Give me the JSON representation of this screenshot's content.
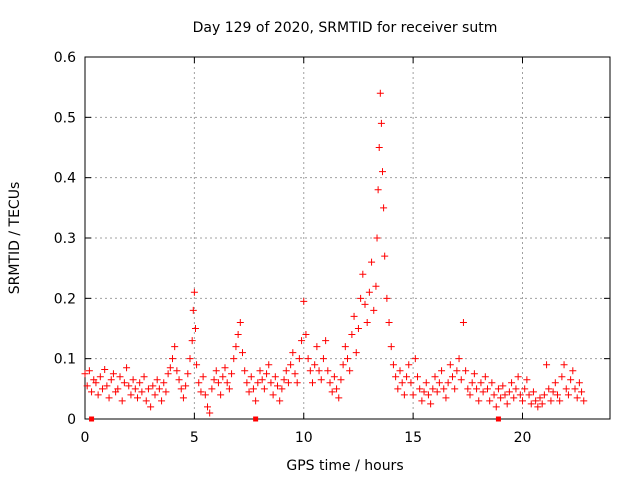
{
  "chart_data": {
    "type": "scatter",
    "title": "Day 129 of 2020, SRMTID for receiver sutm",
    "xlabel": "GPS time / hours",
    "ylabel": "SRMTID / TECUs",
    "xlim": [
      0,
      24
    ],
    "ylim": [
      0,
      0.6
    ],
    "xticks": [
      0,
      5,
      10,
      15,
      20
    ],
    "xtick_labels": [
      "0",
      "5",
      "10",
      "15",
      "20"
    ],
    "yticks": [
      0,
      0.1,
      0.2,
      0.3,
      0.4,
      0.5,
      0.6
    ],
    "ytick_labels": [
      "0",
      "0.1",
      "0.2",
      "0.3",
      "0.4",
      "0.5",
      "0.6"
    ],
    "grid": true,
    "marker": "+",
    "series_color": "#ff0000",
    "series": [
      {
        "name": "SRMTID",
        "points": [
          [
            0.0,
            0.075
          ],
          [
            0.1,
            0.055
          ],
          [
            0.2,
            0.08
          ],
          [
            0.3,
            0.045
          ],
          [
            0.4,
            0.065
          ],
          [
            0.5,
            0.06
          ],
          [
            0.6,
            0.04
          ],
          [
            0.7,
            0.07
          ],
          [
            0.8,
            0.05
          ],
          [
            0.9,
            0.082
          ],
          [
            1.0,
            0.055
          ],
          [
            1.1,
            0.035
          ],
          [
            1.2,
            0.065
          ],
          [
            1.3,
            0.075
          ],
          [
            1.4,
            0.045
          ],
          [
            1.5,
            0.05
          ],
          [
            1.6,
            0.07
          ],
          [
            1.7,
            0.03
          ],
          [
            1.8,
            0.06
          ],
          [
            1.9,
            0.085
          ],
          [
            2.0,
            0.055
          ],
          [
            2.1,
            0.04
          ],
          [
            2.2,
            0.065
          ],
          [
            2.3,
            0.05
          ],
          [
            2.4,
            0.035
          ],
          [
            2.5,
            0.06
          ],
          [
            2.6,
            0.045
          ],
          [
            2.7,
            0.07
          ],
          [
            2.8,
            0.03
          ],
          [
            2.9,
            0.05
          ],
          [
            3.0,
            0.02
          ],
          [
            3.1,
            0.055
          ],
          [
            3.2,
            0.04
          ],
          [
            3.3,
            0.065
          ],
          [
            3.4,
            0.05
          ],
          [
            3.5,
            0.03
          ],
          [
            3.6,
            0.06
          ],
          [
            3.7,
            0.045
          ],
          [
            3.8,
            0.075
          ],
          [
            3.9,
            0.085
          ],
          [
            4.0,
            0.1
          ],
          [
            4.1,
            0.12
          ],
          [
            4.2,
            0.08
          ],
          [
            4.3,
            0.065
          ],
          [
            4.4,
            0.05
          ],
          [
            4.5,
            0.035
          ],
          [
            4.6,
            0.055
          ],
          [
            4.7,
            0.075
          ],
          [
            4.8,
            0.1
          ],
          [
            4.9,
            0.13
          ],
          [
            4.95,
            0.18
          ],
          [
            5.0,
            0.21
          ],
          [
            5.05,
            0.15
          ],
          [
            5.1,
            0.09
          ],
          [
            5.2,
            0.06
          ],
          [
            5.3,
            0.045
          ],
          [
            5.4,
            0.07
          ],
          [
            5.5,
            0.04
          ],
          [
            5.6,
            0.02
          ],
          [
            5.7,
            0.01
          ],
          [
            5.8,
            0.05
          ],
          [
            5.9,
            0.065
          ],
          [
            6.0,
            0.08
          ],
          [
            6.1,
            0.06
          ],
          [
            6.2,
            0.04
          ],
          [
            6.3,
            0.07
          ],
          [
            6.4,
            0.085
          ],
          [
            6.5,
            0.06
          ],
          [
            6.6,
            0.05
          ],
          [
            6.7,
            0.075
          ],
          [
            6.8,
            0.1
          ],
          [
            6.9,
            0.12
          ],
          [
            7.0,
            0.14
          ],
          [
            7.1,
            0.16
          ],
          [
            7.2,
            0.11
          ],
          [
            7.3,
            0.08
          ],
          [
            7.4,
            0.06
          ],
          [
            7.5,
            0.045
          ],
          [
            7.6,
            0.07
          ],
          [
            7.7,
            0.05
          ],
          [
            7.8,
            0.03
          ],
          [
            7.9,
            0.06
          ],
          [
            8.0,
            0.08
          ],
          [
            8.1,
            0.065
          ],
          [
            8.2,
            0.05
          ],
          [
            8.3,
            0.075
          ],
          [
            8.4,
            0.09
          ],
          [
            8.5,
            0.06
          ],
          [
            8.6,
            0.04
          ],
          [
            8.7,
            0.07
          ],
          [
            8.8,
            0.055
          ],
          [
            8.9,
            0.03
          ],
          [
            9.0,
            0.05
          ],
          [
            9.1,
            0.065
          ],
          [
            9.2,
            0.08
          ],
          [
            9.3,
            0.06
          ],
          [
            9.4,
            0.09
          ],
          [
            9.5,
            0.11
          ],
          [
            9.6,
            0.075
          ],
          [
            9.7,
            0.06
          ],
          [
            9.8,
            0.1
          ],
          [
            9.9,
            0.13
          ],
          [
            10.0,
            0.195
          ],
          [
            10.1,
            0.14
          ],
          [
            10.2,
            0.1
          ],
          [
            10.3,
            0.08
          ],
          [
            10.4,
            0.06
          ],
          [
            10.5,
            0.09
          ],
          [
            10.6,
            0.12
          ],
          [
            10.7,
            0.08
          ],
          [
            10.8,
            0.065
          ],
          [
            10.9,
            0.1
          ],
          [
            11.0,
            0.13
          ],
          [
            11.1,
            0.08
          ],
          [
            11.2,
            0.06
          ],
          [
            11.3,
            0.045
          ],
          [
            11.4,
            0.07
          ],
          [
            11.5,
            0.05
          ],
          [
            11.6,
            0.035
          ],
          [
            11.7,
            0.065
          ],
          [
            11.8,
            0.09
          ],
          [
            11.9,
            0.12
          ],
          [
            12.0,
            0.1
          ],
          [
            12.1,
            0.08
          ],
          [
            12.2,
            0.14
          ],
          [
            12.3,
            0.17
          ],
          [
            12.4,
            0.11
          ],
          [
            12.5,
            0.15
          ],
          [
            12.6,
            0.2
          ],
          [
            12.7,
            0.24
          ],
          [
            12.8,
            0.19
          ],
          [
            12.9,
            0.16
          ],
          [
            13.0,
            0.21
          ],
          [
            13.1,
            0.26
          ],
          [
            13.2,
            0.18
          ],
          [
            13.3,
            0.22
          ],
          [
            13.35,
            0.3
          ],
          [
            13.4,
            0.38
          ],
          [
            13.45,
            0.45
          ],
          [
            13.5,
            0.54
          ],
          [
            13.55,
            0.49
          ],
          [
            13.6,
            0.41
          ],
          [
            13.65,
            0.35
          ],
          [
            13.7,
            0.27
          ],
          [
            13.8,
            0.2
          ],
          [
            13.9,
            0.16
          ],
          [
            14.0,
            0.12
          ],
          [
            14.1,
            0.09
          ],
          [
            14.2,
            0.07
          ],
          [
            14.3,
            0.05
          ],
          [
            14.4,
            0.08
          ],
          [
            14.5,
            0.06
          ],
          [
            14.6,
            0.04
          ],
          [
            14.7,
            0.07
          ],
          [
            14.8,
            0.09
          ],
          [
            14.9,
            0.06
          ],
          [
            15.0,
            0.04
          ],
          [
            15.1,
            0.1
          ],
          [
            15.2,
            0.07
          ],
          [
            15.3,
            0.05
          ],
          [
            15.4,
            0.03
          ],
          [
            15.5,
            0.045
          ],
          [
            15.6,
            0.06
          ],
          [
            15.7,
            0.04
          ],
          [
            15.8,
            0.025
          ],
          [
            15.9,
            0.05
          ],
          [
            16.0,
            0.07
          ],
          [
            16.1,
            0.045
          ],
          [
            16.2,
            0.06
          ],
          [
            16.3,
            0.08
          ],
          [
            16.4,
            0.05
          ],
          [
            16.5,
            0.035
          ],
          [
            16.6,
            0.06
          ],
          [
            16.7,
            0.09
          ],
          [
            16.8,
            0.07
          ],
          [
            16.9,
            0.05
          ],
          [
            17.0,
            0.08
          ],
          [
            17.1,
            0.1
          ],
          [
            17.2,
            0.065
          ],
          [
            17.3,
            0.16
          ],
          [
            17.4,
            0.08
          ],
          [
            17.5,
            0.05
          ],
          [
            17.6,
            0.04
          ],
          [
            17.7,
            0.06
          ],
          [
            17.8,
            0.075
          ],
          [
            17.9,
            0.05
          ],
          [
            18.0,
            0.03
          ],
          [
            18.1,
            0.06
          ],
          [
            18.2,
            0.045
          ],
          [
            18.3,
            0.07
          ],
          [
            18.4,
            0.05
          ],
          [
            18.5,
            0.03
          ],
          [
            18.6,
            0.06
          ],
          [
            18.7,
            0.04
          ],
          [
            18.8,
            0.02
          ],
          [
            18.9,
            0.05
          ],
          [
            19.0,
            0.035
          ],
          [
            19.1,
            0.055
          ],
          [
            19.2,
            0.04
          ],
          [
            19.3,
            0.025
          ],
          [
            19.4,
            0.045
          ],
          [
            19.5,
            0.06
          ],
          [
            19.6,
            0.035
          ],
          [
            19.7,
            0.05
          ],
          [
            19.8,
            0.07
          ],
          [
            19.9,
            0.04
          ],
          [
            20.0,
            0.03
          ],
          [
            20.1,
            0.05
          ],
          [
            20.2,
            0.065
          ],
          [
            20.3,
            0.04
          ],
          [
            20.4,
            0.025
          ],
          [
            20.5,
            0.045
          ],
          [
            20.6,
            0.03
          ],
          [
            20.7,
            0.02
          ],
          [
            20.8,
            0.035
          ],
          [
            20.9,
            0.025
          ],
          [
            21.0,
            0.04
          ],
          [
            21.1,
            0.09
          ],
          [
            21.2,
            0.05
          ],
          [
            21.3,
            0.03
          ],
          [
            21.4,
            0.045
          ],
          [
            21.5,
            0.06
          ],
          [
            21.6,
            0.04
          ],
          [
            21.7,
            0.03
          ],
          [
            21.8,
            0.07
          ],
          [
            21.9,
            0.09
          ],
          [
            22.0,
            0.05
          ],
          [
            22.1,
            0.04
          ],
          [
            22.2,
            0.065
          ],
          [
            22.3,
            0.08
          ],
          [
            22.4,
            0.05
          ],
          [
            22.5,
            0.035
          ],
          [
            22.6,
            0.06
          ],
          [
            22.7,
            0.045
          ],
          [
            22.8,
            0.03
          ]
        ]
      }
    ],
    "baseline_markers_x": [
      0.3,
      7.8,
      18.9
    ]
  }
}
